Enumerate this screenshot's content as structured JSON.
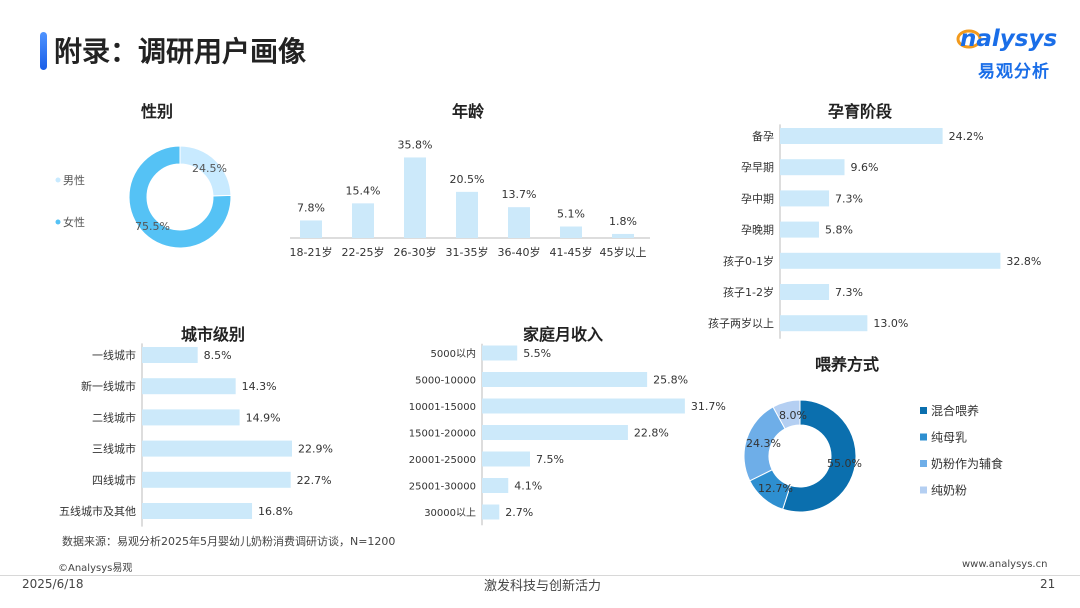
{
  "header": {
    "title": "附录：调研用户画像",
    "logo_en": "nalysys",
    "logo_cn": "易观分析"
  },
  "colors": {
    "bar": "#cce9fa",
    "pie_light": "#c8eaff",
    "pie_main": "#55c2f5",
    "dark_blue": "#0b6fae",
    "mid_blue": "#2e8fd0",
    "soft_blue": "#6eaee8",
    "pale_blue": "#b4cff2",
    "text": "#333333"
  },
  "footer": {
    "source": "数据来源：易观分析2025年5月婴幼儿奶粉消费调研访谈，N=1200",
    "copyright": "©Analysys易观",
    "website": "www.analysys.cn",
    "date": "2025/6/18",
    "slogan": "激发科技与创新活力",
    "page": "21"
  },
  "chart_data": [
    {
      "id": "gender",
      "type": "pie",
      "title": "性别",
      "categories": [
        "男性",
        "女性"
      ],
      "values": [
        24.5,
        75.5
      ],
      "labels": [
        "24.5%",
        "75.5%"
      ]
    },
    {
      "id": "age",
      "type": "bar",
      "title": "年龄",
      "categories": [
        "18-21岁",
        "22-25岁",
        "26-30岁",
        "31-35岁",
        "36-40岁",
        "41-45岁",
        "45岁以上"
      ],
      "values": [
        7.8,
        15.4,
        35.8,
        20.5,
        13.7,
        5.1,
        1.8
      ],
      "labels": [
        "7.8%",
        "15.4%",
        "35.8%",
        "20.5%",
        "13.7%",
        "5.1%",
        "1.8%"
      ],
      "ylim": [
        0,
        40
      ]
    },
    {
      "id": "pregnancy",
      "type": "bar",
      "orientation": "horizontal",
      "title": "孕育阶段",
      "categories": [
        "备孕",
        "孕早期",
        "孕中期",
        "孕晚期",
        "孩子0-1岁",
        "孩子1-2岁",
        "孩子两岁以上"
      ],
      "values": [
        24.2,
        9.6,
        7.3,
        5.8,
        32.8,
        7.3,
        13.0
      ],
      "labels": [
        "24.2%",
        "9.6%",
        "7.3%",
        "5.8%",
        "32.8%",
        "7.3%",
        "13.0%"
      ],
      "xlim": [
        0,
        35
      ]
    },
    {
      "id": "city",
      "type": "bar",
      "orientation": "horizontal",
      "title": "城市级别",
      "categories": [
        "一线城市",
        "新一线城市",
        "二线城市",
        "三线城市",
        "四线城市",
        "五线城市及其他"
      ],
      "values": [
        8.5,
        14.3,
        14.9,
        22.9,
        22.7,
        16.8
      ],
      "labels": [
        "8.5%",
        "14.3%",
        "14.9%",
        "22.9%",
        "22.7%",
        "16.8%"
      ],
      "xlim": [
        0,
        25
      ]
    },
    {
      "id": "income",
      "type": "bar",
      "orientation": "horizontal",
      "title": "家庭月收入",
      "categories": [
        "5000以内",
        "5000-10000",
        "10001-15000",
        "15001-20000",
        "20001-25000",
        "25001-30000",
        "30000以上"
      ],
      "values": [
        5.5,
        25.8,
        31.7,
        22.8,
        7.5,
        4.1,
        2.7
      ],
      "labels": [
        "5.5%",
        "25.8%",
        "31.7%",
        "22.8%",
        "7.5%",
        "4.1%",
        "2.7%"
      ],
      "xlim": [
        0,
        33
      ]
    },
    {
      "id": "feeding",
      "type": "pie",
      "title": "喂养方式",
      "categories": [
        "混合喂养",
        "纯母乳",
        "奶粉作为辅食",
        "纯奶粉"
      ],
      "values": [
        55.0,
        12.7,
        24.3,
        8.0
      ],
      "labels": [
        "55.0%",
        "12.7%",
        "24.3%",
        "8.0%"
      ]
    }
  ]
}
